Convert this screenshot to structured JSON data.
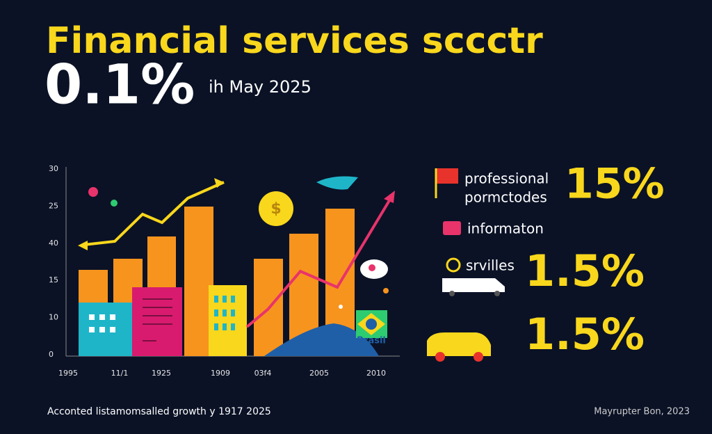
{
  "header": {
    "title": "Financial services sccctr",
    "value": "0.1%",
    "date": "ih May 2025"
  },
  "chart": {
    "y_labels": [
      "30",
      "25",
      "40",
      "15",
      "10",
      "0"
    ],
    "x_labels": [
      "1995",
      "11/1",
      "1925",
      "1909",
      "03f4",
      "2005",
      "2010"
    ],
    "badge": "Brasil"
  },
  "highlights": [
    {
      "label_lines": [
        "professional",
        "pormctodes"
      ],
      "figure": "15%"
    },
    {
      "label_lines": [
        "informaton"
      ]
    },
    {
      "label_lines": [
        "srvilles"
      ],
      "figure": "1.5%"
    },
    {
      "figure": "1.5%"
    }
  ],
  "footer": {
    "left": "Acconted listamomsalled growth y 1917 2025",
    "right": "Mayrupter Bon, 2023"
  }
}
